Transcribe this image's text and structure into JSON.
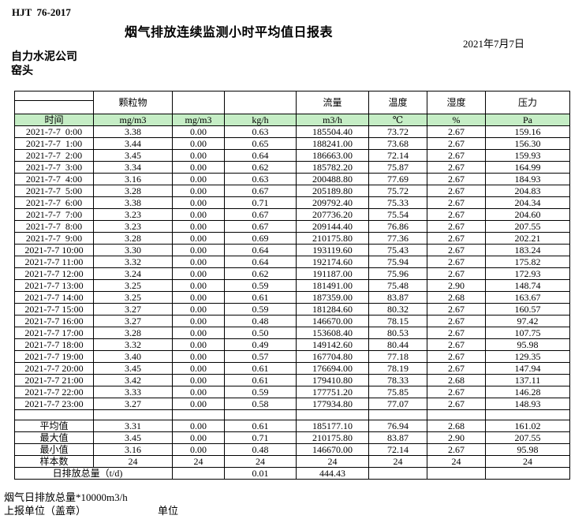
{
  "page": {
    "standard_code": "HJT  76-2017",
    "title": "烟气排放连续监测小时平均值日报表",
    "date": "2021年7月7日",
    "company": "自力水泥公司",
    "station": "窑头"
  },
  "table": {
    "group_headers": [
      "",
      "颗粒物",
      "",
      "",
      "流量",
      "温度",
      "湿度",
      "压力"
    ],
    "unit_headers": [
      "时间",
      "mg/m3",
      "mg/m3",
      "kg/h",
      "m3/h",
      "℃",
      "%",
      "Pa"
    ],
    "rows": [
      [
        "2021-7-7  0:00",
        "3.38",
        "0.00",
        "0.63",
        "185504.40",
        "73.72",
        "2.67",
        "159.16"
      ],
      [
        "2021-7-7  1:00",
        "3.44",
        "0.00",
        "0.65",
        "188241.00",
        "73.68",
        "2.67",
        "156.30"
      ],
      [
        "2021-7-7  2:00",
        "3.45",
        "0.00",
        "0.64",
        "186663.00",
        "72.14",
        "2.67",
        "159.93"
      ],
      [
        "2021-7-7  3:00",
        "3.34",
        "0.00",
        "0.62",
        "185782.20",
        "75.87",
        "2.67",
        "164.99"
      ],
      [
        "2021-7-7  4:00",
        "3.16",
        "0.00",
        "0.63",
        "200488.80",
        "77.69",
        "2.67",
        "184.93"
      ],
      [
        "2021-7-7  5:00",
        "3.28",
        "0.00",
        "0.67",
        "205189.80",
        "75.72",
        "2.67",
        "204.83"
      ],
      [
        "2021-7-7  6:00",
        "3.38",
        "0.00",
        "0.71",
        "209792.40",
        "75.33",
        "2.67",
        "204.34"
      ],
      [
        "2021-7-7  7:00",
        "3.23",
        "0.00",
        "0.67",
        "207736.20",
        "75.54",
        "2.67",
        "204.60"
      ],
      [
        "2021-7-7  8:00",
        "3.23",
        "0.00",
        "0.67",
        "209144.40",
        "76.86",
        "2.67",
        "207.55"
      ],
      [
        "2021-7-7  9:00",
        "3.28",
        "0.00",
        "0.69",
        "210175.80",
        "77.36",
        "2.67",
        "202.21"
      ],
      [
        "2021-7-7 10:00",
        "3.30",
        "0.00",
        "0.64",
        "193119.60",
        "75.43",
        "2.67",
        "183.24"
      ],
      [
        "2021-7-7 11:00",
        "3.32",
        "0.00",
        "0.64",
        "192174.60",
        "75.94",
        "2.67",
        "175.82"
      ],
      [
        "2021-7-7 12:00",
        "3.24",
        "0.00",
        "0.62",
        "191187.00",
        "75.96",
        "2.67",
        "172.93"
      ],
      [
        "2021-7-7 13:00",
        "3.25",
        "0.00",
        "0.59",
        "181491.00",
        "75.48",
        "2.90",
        "148.74"
      ],
      [
        "2021-7-7 14:00",
        "3.25",
        "0.00",
        "0.61",
        "187359.00",
        "83.87",
        "2.68",
        "163.67"
      ],
      [
        "2021-7-7 15:00",
        "3.27",
        "0.00",
        "0.59",
        "181284.60",
        "80.32",
        "2.67",
        "160.57"
      ],
      [
        "2021-7-7 16:00",
        "3.27",
        "0.00",
        "0.48",
        "146670.00",
        "78.15",
        "2.67",
        "97.42"
      ],
      [
        "2021-7-7 17:00",
        "3.28",
        "0.00",
        "0.50",
        "153608.40",
        "80.53",
        "2.67",
        "107.75"
      ],
      [
        "2021-7-7 18:00",
        "3.32",
        "0.00",
        "0.49",
        "149142.60",
        "80.44",
        "2.67",
        "95.98"
      ],
      [
        "2021-7-7 19:00",
        "3.40",
        "0.00",
        "0.57",
        "167704.80",
        "77.18",
        "2.67",
        "129.35"
      ],
      [
        "2021-7-7 20:00",
        "3.45",
        "0.00",
        "0.61",
        "176694.00",
        "78.19",
        "2.67",
        "147.94"
      ],
      [
        "2021-7-7 21:00",
        "3.42",
        "0.00",
        "0.61",
        "179410.80",
        "78.33",
        "2.68",
        "137.11"
      ],
      [
        "2021-7-7 22:00",
        "3.33",
        "0.00",
        "0.59",
        "177751.20",
        "75.85",
        "2.67",
        "146.28"
      ],
      [
        "2021-7-7 23:00",
        "3.27",
        "0.00",
        "0.58",
        "177934.80",
        "77.07",
        "2.67",
        "148.93"
      ]
    ],
    "summary_rows": [
      {
        "label": "平均值",
        "values": [
          "3.31",
          "0.00",
          "0.61",
          "185177.10",
          "76.94",
          "2.68",
          "161.02"
        ]
      },
      {
        "label": "最大值",
        "values": [
          "3.45",
          "0.00",
          "0.71",
          "210175.80",
          "83.87",
          "2.90",
          "207.55"
        ]
      },
      {
        "label": "最小值",
        "values": [
          "3.16",
          "0.00",
          "0.48",
          "146670.00",
          "72.14",
          "2.67",
          "95.98"
        ]
      },
      {
        "label": "样本数",
        "values": [
          "24",
          "24",
          "24",
          "24",
          "24",
          "24",
          "24"
        ]
      }
    ],
    "daily_total_row": {
      "label": "日排放总量（t/d)",
      "cells": [
        "",
        "0.01",
        "444.43",
        "",
        "",
        ""
      ]
    }
  },
  "footer": {
    "note": "烟气日排放总量*10000m3/h",
    "report_unit_label": "上报单位（盖章）",
    "unit_label": "单位"
  },
  "colors": {
    "header_green": "#c5edc5",
    "border": "#000000"
  }
}
